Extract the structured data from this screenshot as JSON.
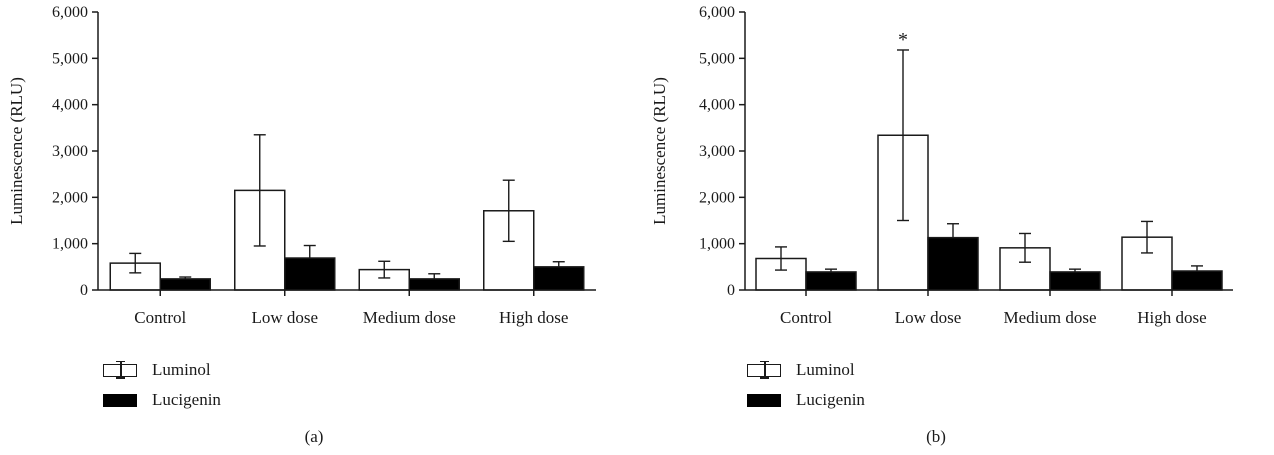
{
  "legend": {
    "luminol_label": "Luminol",
    "lucigenin_label": "Lucigenin"
  },
  "colors": {
    "luminol_fill": "#ffffff",
    "lucigenin_fill": "#000000",
    "stroke": "#1a1a1a"
  },
  "chart_data": [
    {
      "type": "bar",
      "panel_label": "(a)",
      "ylabel": "Luminescence (RLU)",
      "xlabel": "",
      "ylim": [
        0,
        6000
      ],
      "yticks": [
        0,
        1000,
        2000,
        3000,
        4000,
        5000,
        6000
      ],
      "ytick_labels": [
        "0",
        "1,000",
        "2,000",
        "3,000",
        "4,000",
        "5,000",
        "6,000"
      ],
      "categories": [
        "Control",
        "Low dose",
        "Medium dose",
        "High dose"
      ],
      "series": [
        {
          "name": "Luminol",
          "values": [
            580,
            2150,
            440,
            1710
          ],
          "errors": [
            210,
            1200,
            180,
            660
          ]
        },
        {
          "name": "Lucigenin",
          "values": [
            240,
            690,
            240,
            500
          ],
          "errors": [
            40,
            270,
            110,
            110
          ]
        }
      ],
      "annotations": []
    },
    {
      "type": "bar",
      "panel_label": "(b)",
      "ylabel": "Luminescence (RLU)",
      "xlabel": "",
      "ylim": [
        0,
        6000
      ],
      "yticks": [
        0,
        1000,
        2000,
        3000,
        4000,
        5000,
        6000
      ],
      "ytick_labels": [
        "0",
        "1,000",
        "2,000",
        "3,000",
        "4,000",
        "5,000",
        "6,000"
      ],
      "categories": [
        "Control",
        "Low dose",
        "Medium dose",
        "High dose"
      ],
      "series": [
        {
          "name": "Luminol",
          "values": [
            680,
            3340,
            910,
            1140
          ],
          "errors": [
            250,
            1840,
            310,
            340
          ]
        },
        {
          "name": "Lucigenin",
          "values": [
            390,
            1130,
            390,
            410
          ],
          "errors": [
            60,
            300,
            60,
            110
          ]
        }
      ],
      "annotations": [
        {
          "category": "Low dose",
          "series": "Luminol",
          "text": "*"
        }
      ]
    }
  ]
}
